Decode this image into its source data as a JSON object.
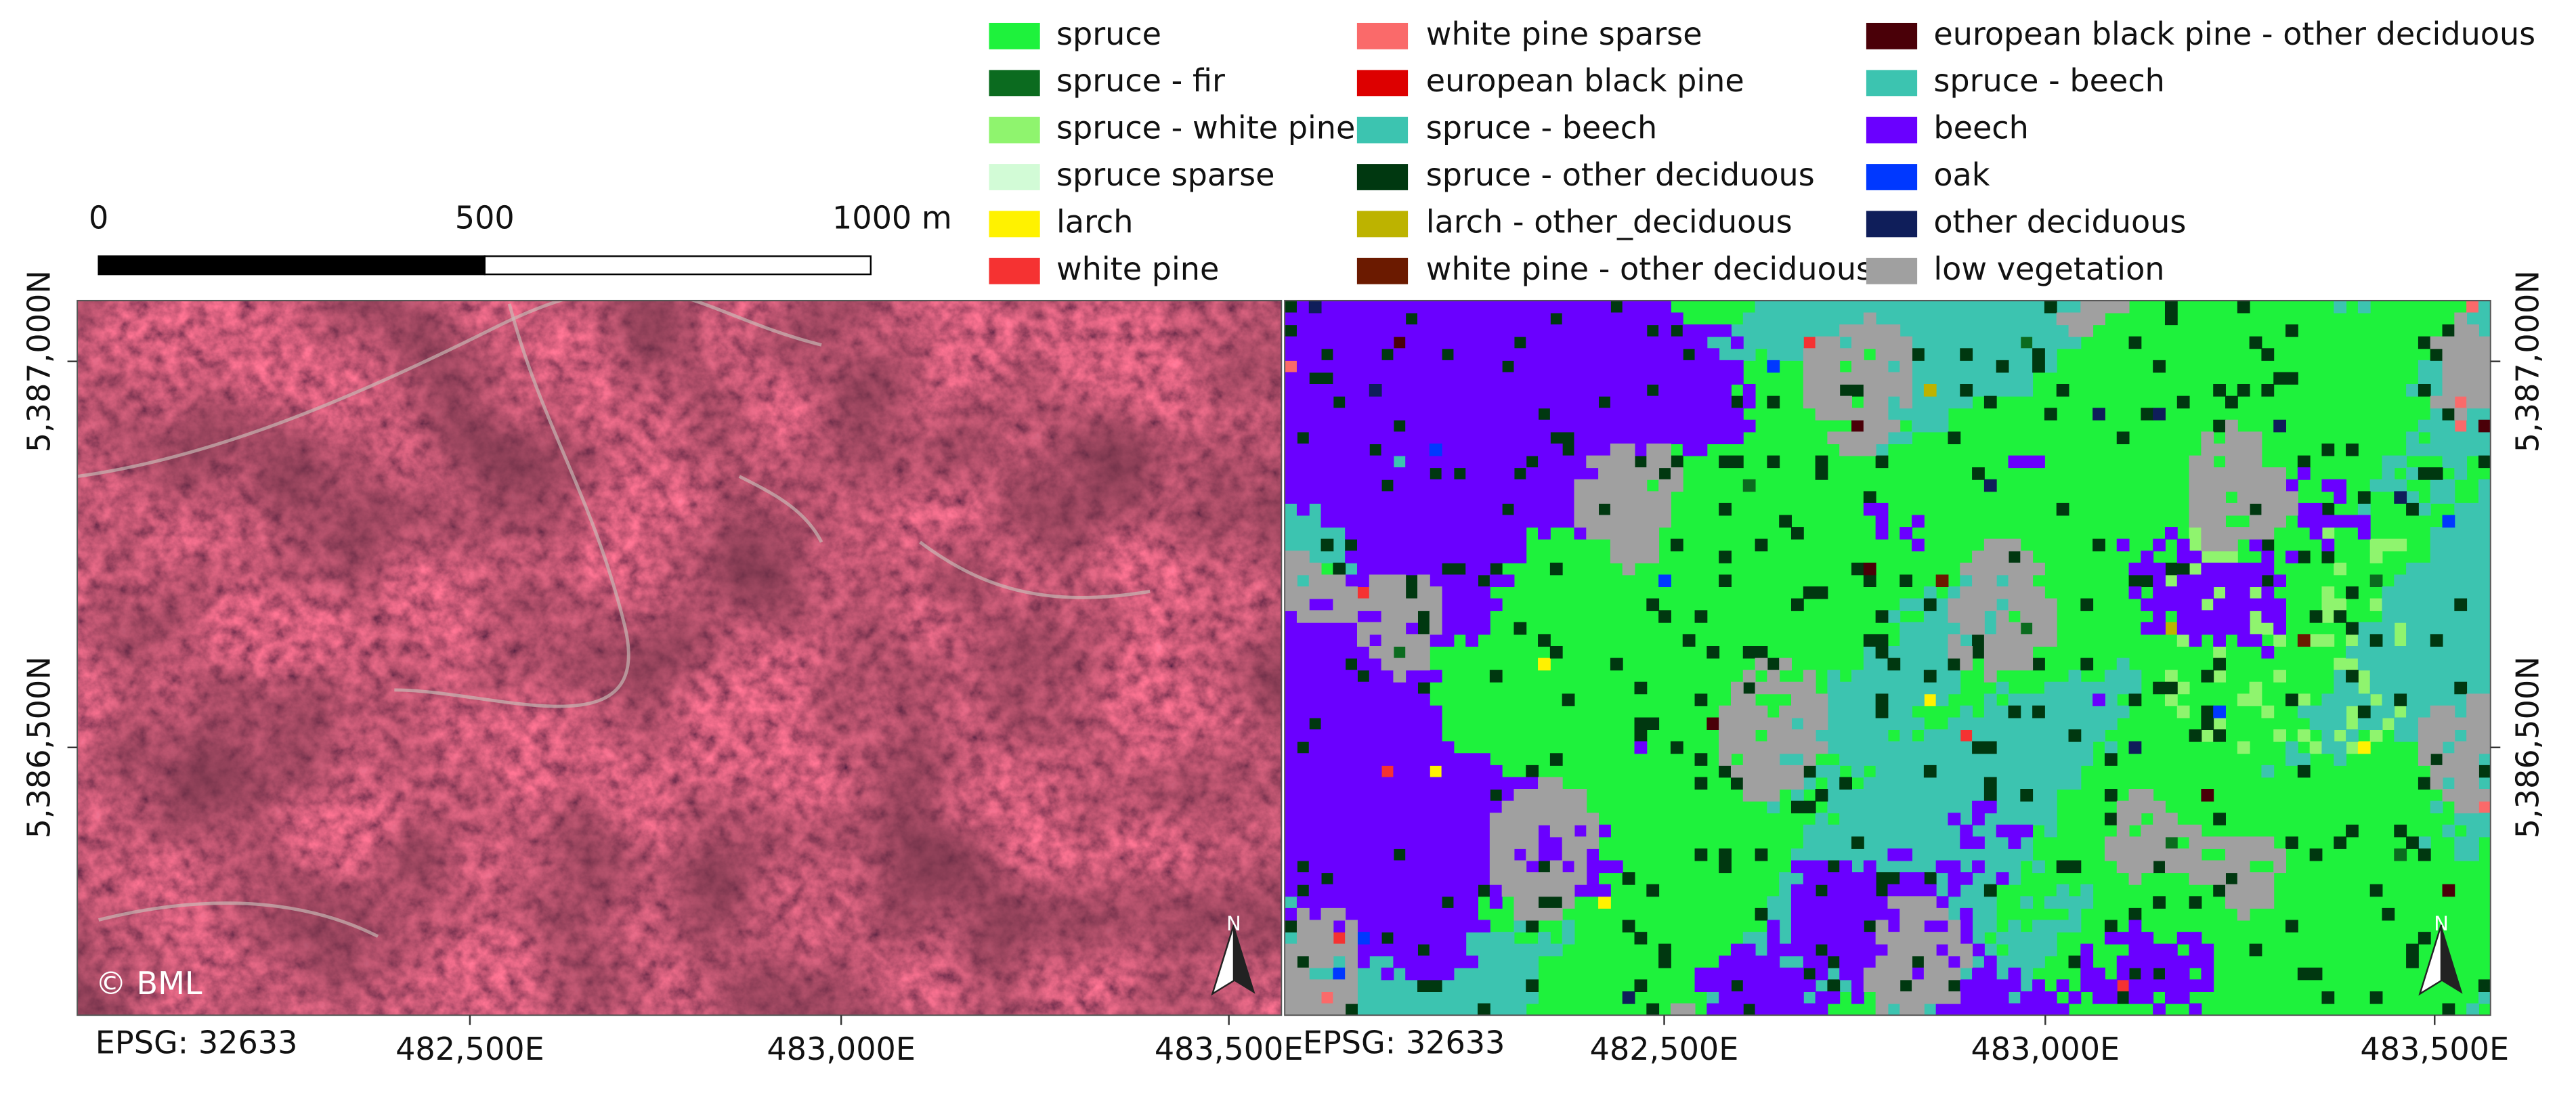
{
  "scale_bar": {
    "labels": [
      "0",
      "500",
      "1000 m"
    ]
  },
  "legend": [
    {
      "label": "spruce",
      "color": "#1ef23c"
    },
    {
      "label": "spruce - fir",
      "color": "#0b6b1f"
    },
    {
      "label": "spruce - white pine",
      "color": "#8ff46e"
    },
    {
      "label": "spruce sparse",
      "color": "#d2fbd6"
    },
    {
      "label": "larch",
      "color": "#fff200"
    },
    {
      "label": "white pine",
      "color": "#f53232"
    },
    {
      "label": "white pine sparse",
      "color": "#fa6a6a"
    },
    {
      "label": "european black pine",
      "color": "#dd0000"
    },
    {
      "label": "spruce - beech",
      "color": "#3cc4b0"
    },
    {
      "label": "spruce - other deciduous",
      "color": "#003810"
    },
    {
      "label": "larch - other_deciduous",
      "color": "#bdb300"
    },
    {
      "label": "white pine - other deciduous",
      "color": "#6b1a00"
    },
    {
      "label": "european black pine - other deciduous",
      "color": "#4a0008"
    },
    {
      "label": "spruce - beech",
      "color": "#3cc4b0"
    },
    {
      "label": "beech",
      "color": "#6a00ff"
    },
    {
      "label": "oak",
      "color": "#0038ff"
    },
    {
      "label": "other deciduous",
      "color": "#0f1e5a"
    },
    {
      "label": "low vegetation",
      "color": "#a0a0a0"
    }
  ],
  "left_map": {
    "credit": "© BML",
    "crs": "EPSG: 32633",
    "x_labels": [
      "482,500E",
      "483,000E",
      "483,500E"
    ],
    "y_labels": [
      "5,387,000N",
      "5,386,500N"
    ],
    "north": "N"
  },
  "right_map": {
    "crs": "EPSG: 32633",
    "x_labels": [
      "482,500E",
      "483,000E",
      "483,500E"
    ],
    "y_labels": [
      "5,387,000N",
      "5,386,500N"
    ],
    "north": "N"
  }
}
